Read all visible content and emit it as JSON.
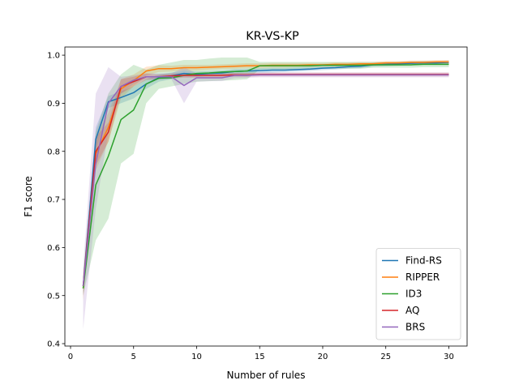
{
  "chart_data": {
    "type": "line",
    "title": "KR-VS-KP",
    "xlabel": "Number of rules",
    "ylabel": "F1 score",
    "xlim": [
      -0.45,
      31.45
    ],
    "ylim": [
      0.395,
      1.017
    ],
    "xticks": [
      0,
      5,
      10,
      15,
      20,
      25,
      30
    ],
    "xtick_labels": [
      "0",
      "5",
      "10",
      "15",
      "20",
      "25",
      "30"
    ],
    "yticks": [
      0.4,
      0.5,
      0.6,
      0.7,
      0.8,
      0.9,
      1.0
    ],
    "ytick_labels": [
      "0.4",
      "0.5",
      "0.6",
      "0.7",
      "0.8",
      "0.9",
      "1.0"
    ],
    "grid": false,
    "legend_position": "lower-right",
    "x": [
      1,
      2,
      3,
      4,
      5,
      6,
      7,
      8,
      9,
      10,
      11,
      12,
      13,
      14,
      15,
      16,
      17,
      18,
      19,
      20,
      21,
      22,
      23,
      24,
      25,
      26,
      27,
      28,
      29,
      30
    ],
    "series": [
      {
        "name": "Find-RS",
        "color": "#1f77b4",
        "values": [
          0.52,
          0.825,
          0.903,
          0.912,
          0.922,
          0.94,
          0.953,
          0.957,
          0.962,
          0.96,
          0.962,
          0.963,
          0.966,
          0.967,
          0.968,
          0.969,
          0.969,
          0.97,
          0.971,
          0.973,
          0.974,
          0.976,
          0.977,
          0.98,
          0.981,
          0.982,
          0.983,
          0.984,
          0.984,
          0.985
        ],
        "band_lower": [
          0.5,
          0.8,
          0.89,
          0.9,
          0.91,
          0.93,
          0.945,
          0.95,
          0.955,
          0.955,
          0.957,
          0.958,
          0.961,
          0.962,
          0.963,
          0.964,
          0.965,
          0.966,
          0.967,
          0.969,
          0.97,
          0.972,
          0.973,
          0.976,
          0.977,
          0.978,
          0.979,
          0.98,
          0.98,
          0.981
        ],
        "band_upper": [
          0.54,
          0.85,
          0.915,
          0.925,
          0.935,
          0.95,
          0.96,
          0.964,
          0.968,
          0.966,
          0.967,
          0.968,
          0.971,
          0.972,
          0.973,
          0.974,
          0.974,
          0.975,
          0.976,
          0.977,
          0.978,
          0.98,
          0.981,
          0.984,
          0.985,
          0.986,
          0.987,
          0.988,
          0.988,
          0.989
        ]
      },
      {
        "name": "RIPPER",
        "color": "#ff7f0e",
        "values": [
          0.515,
          0.795,
          0.85,
          0.93,
          0.947,
          0.967,
          0.972,
          0.972,
          0.974,
          0.974,
          0.975,
          0.976,
          0.977,
          0.978,
          0.978,
          0.979,
          0.979,
          0.979,
          0.98,
          0.98,
          0.981,
          0.981,
          0.982,
          0.982,
          0.984,
          0.984,
          0.985,
          0.985,
          0.986,
          0.986
        ],
        "band_lower": [
          0.49,
          0.76,
          0.82,
          0.91,
          0.935,
          0.958,
          0.965,
          0.966,
          0.968,
          0.968,
          0.97,
          0.971,
          0.972,
          0.973,
          0.973,
          0.974,
          0.974,
          0.975,
          0.976,
          0.976,
          0.977,
          0.977,
          0.978,
          0.978,
          0.98,
          0.98,
          0.981,
          0.981,
          0.982,
          0.982
        ],
        "band_upper": [
          0.54,
          0.83,
          0.88,
          0.95,
          0.96,
          0.976,
          0.979,
          0.978,
          0.98,
          0.98,
          0.98,
          0.981,
          0.982,
          0.983,
          0.983,
          0.984,
          0.984,
          0.984,
          0.984,
          0.984,
          0.985,
          0.985,
          0.986,
          0.986,
          0.988,
          0.988,
          0.989,
          0.989,
          0.99,
          0.99
        ]
      },
      {
        "name": "ID3",
        "color": "#2ca02c",
        "values": [
          0.515,
          0.73,
          0.79,
          0.866,
          0.886,
          0.94,
          0.952,
          0.953,
          0.958,
          0.962,
          0.963,
          0.965,
          0.966,
          0.967,
          0.978,
          0.978,
          0.978,
          0.978,
          0.978,
          0.979,
          0.979,
          0.979,
          0.979,
          0.98,
          0.98,
          0.98,
          0.98,
          0.981,
          0.981,
          0.981
        ],
        "band_lower": [
          0.5,
          0.615,
          0.66,
          0.775,
          0.795,
          0.9,
          0.93,
          0.935,
          0.94,
          0.945,
          0.946,
          0.947,
          0.948,
          0.95,
          0.97,
          0.97,
          0.97,
          0.97,
          0.97,
          0.972,
          0.972,
          0.972,
          0.972,
          0.974,
          0.974,
          0.974,
          0.974,
          0.975,
          0.975,
          0.975
        ],
        "band_upper": [
          0.53,
          0.84,
          0.92,
          0.96,
          0.98,
          0.97,
          0.98,
          0.985,
          0.99,
          0.99,
          0.993,
          0.995,
          0.995,
          0.995,
          0.986,
          0.986,
          0.986,
          0.986,
          0.986,
          0.986,
          0.986,
          0.986,
          0.986,
          0.986,
          0.986,
          0.986,
          0.987,
          0.987,
          0.987,
          0.987
        ]
      },
      {
        "name": "AQ",
        "color": "#d62728",
        "values": [
          0.52,
          0.8,
          0.84,
          0.935,
          0.945,
          0.955,
          0.955,
          0.957,
          0.958,
          0.958,
          0.958,
          0.958,
          0.959,
          0.959,
          0.96,
          0.96,
          0.96,
          0.96,
          0.96,
          0.96,
          0.96,
          0.96,
          0.96,
          0.96,
          0.96,
          0.96,
          0.96,
          0.96,
          0.96,
          0.96
        ],
        "band_lower": [
          0.5,
          0.77,
          0.82,
          0.92,
          0.935,
          0.948,
          0.95,
          0.952,
          0.953,
          0.953,
          0.953,
          0.954,
          0.955,
          0.955,
          0.956,
          0.956,
          0.956,
          0.956,
          0.956,
          0.956,
          0.956,
          0.956,
          0.956,
          0.956,
          0.956,
          0.956,
          0.956,
          0.956,
          0.956,
          0.956
        ],
        "band_upper": [
          0.54,
          0.83,
          0.86,
          0.95,
          0.955,
          0.962,
          0.96,
          0.962,
          0.963,
          0.963,
          0.963,
          0.962,
          0.963,
          0.963,
          0.964,
          0.964,
          0.964,
          0.964,
          0.964,
          0.964,
          0.964,
          0.964,
          0.964,
          0.964,
          0.964,
          0.964,
          0.964,
          0.964,
          0.964,
          0.964
        ]
      },
      {
        "name": "BRS",
        "color": "#9467bd",
        "values": [
          0.52,
          0.775,
          0.9,
          0.935,
          0.948,
          0.955,
          0.955,
          0.955,
          0.937,
          0.953,
          0.953,
          0.953,
          0.958,
          0.958,
          0.959,
          0.959,
          0.959,
          0.959,
          0.959,
          0.959,
          0.959,
          0.959,
          0.959,
          0.959,
          0.959,
          0.959,
          0.959,
          0.959,
          0.959,
          0.959
        ],
        "band_lower": [
          0.43,
          0.68,
          0.84,
          0.92,
          0.94,
          0.95,
          0.95,
          0.95,
          0.9,
          0.945,
          0.946,
          0.946,
          0.952,
          0.953,
          0.954,
          0.954,
          0.954,
          0.954,
          0.954,
          0.954,
          0.954,
          0.954,
          0.954,
          0.954,
          0.954,
          0.954,
          0.954,
          0.954,
          0.954,
          0.954
        ],
        "band_upper": [
          0.56,
          0.92,
          0.975,
          0.955,
          0.958,
          0.962,
          0.962,
          0.962,
          0.975,
          0.962,
          0.962,
          0.962,
          0.964,
          0.964,
          0.964,
          0.964,
          0.964,
          0.964,
          0.964,
          0.964,
          0.964,
          0.964,
          0.964,
          0.964,
          0.964,
          0.964,
          0.964,
          0.964,
          0.964,
          0.964
        ]
      }
    ]
  }
}
